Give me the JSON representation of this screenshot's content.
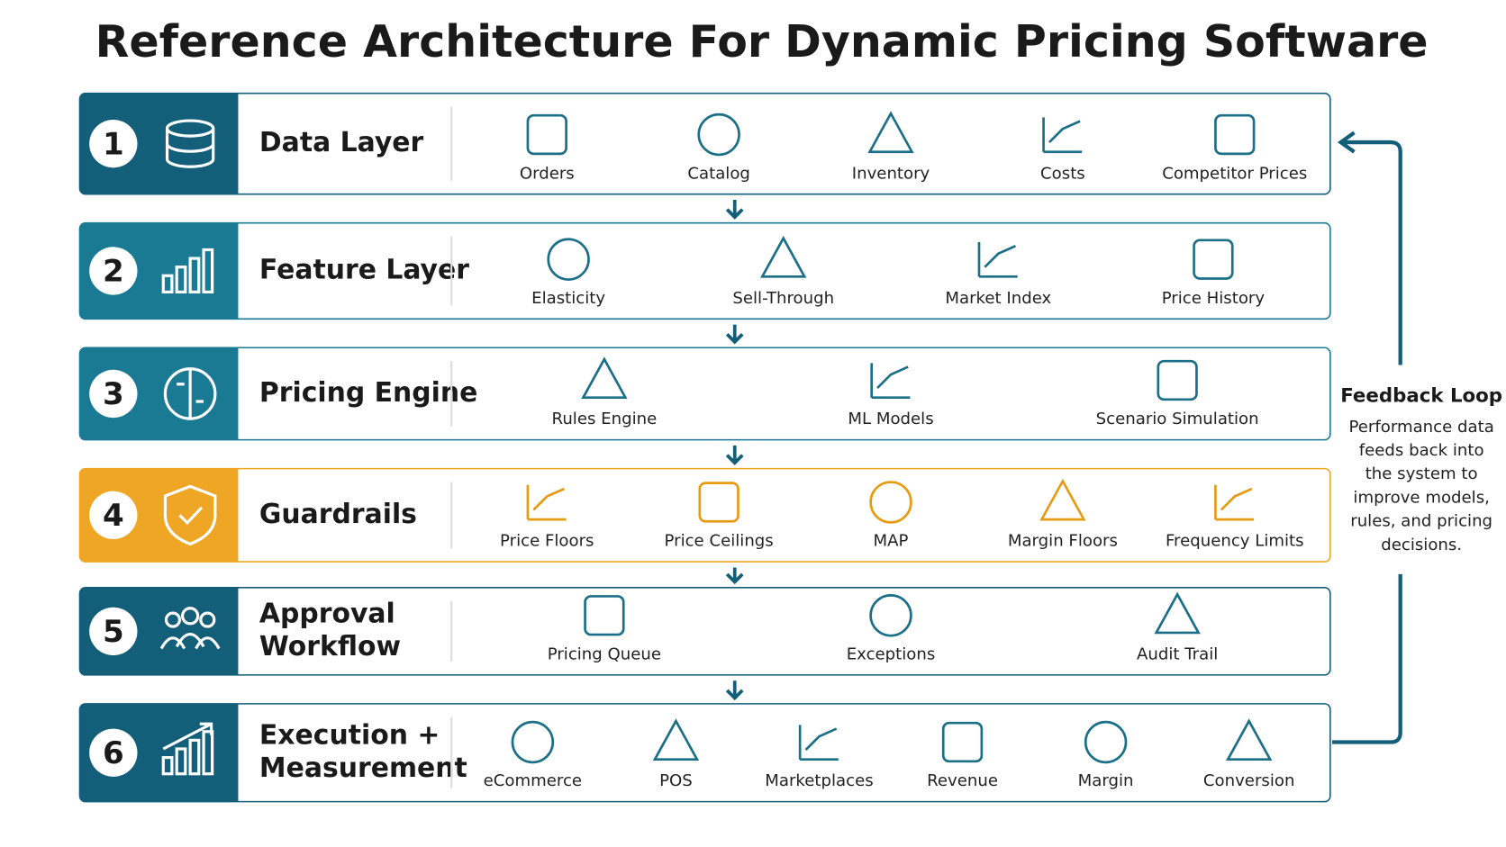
{
  "title": "Reference Architecture For Dynamic Pricing Software",
  "layers": [
    {
      "number": "1",
      "name": [
        "Data Layer"
      ],
      "color": "#135e78",
      "items": [
        "Orders",
        "Catalog",
        "Inventory",
        "Costs",
        "Competitor Prices"
      ]
    },
    {
      "number": "2",
      "name": [
        "Feature Layer"
      ],
      "color": "#1b7a93",
      "items": [
        "Elasticity",
        "Sell-Through",
        "Market Index",
        "Price History"
      ]
    },
    {
      "number": "3",
      "name": [
        "Pricing Engine"
      ],
      "color": "#1b7a93",
      "items": [
        "Rules Engine",
        "ML Models",
        "Scenario Simulation"
      ]
    },
    {
      "number": "4",
      "name": [
        "Guardrails"
      ],
      "color": "#eea624",
      "items": [
        "Price Floors",
        "Price Ceilings",
        "MAP",
        "Margin Floors",
        "Frequency Limits"
      ]
    },
    {
      "number": "5",
      "name": [
        "Approval",
        "Workflow"
      ],
      "color": "#135e78",
      "items": [
        "Pricing Queue",
        "Exceptions",
        "Audit Trail"
      ]
    },
    {
      "number": "6",
      "name": [
        "Execution +",
        "Measurement"
      ],
      "color": "#135e78",
      "items": [
        "eCommerce",
        "POS",
        "Marketplaces",
        "Revenue",
        "Margin",
        "Conversion"
      ]
    }
  ],
  "feedback": {
    "title": "Feedback Loop",
    "text": [
      "Performance data",
      "feeds back into",
      "the system to",
      "improve models,",
      "rules, and pricing",
      "decisions."
    ]
  }
}
